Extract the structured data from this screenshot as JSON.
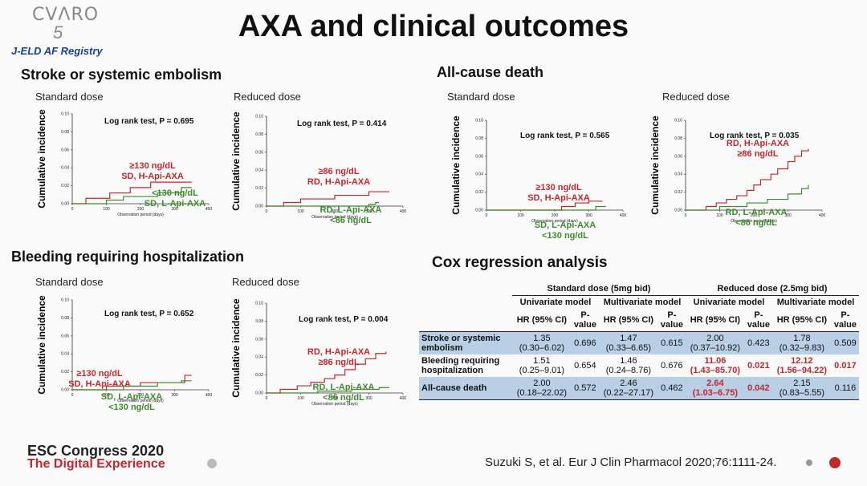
{
  "logo": {
    "text": "CVΛRO",
    "number": "5"
  },
  "registry": "J-ELD AF Registry",
  "title": "AXA and clinical outcomes",
  "sections": {
    "stroke": "Stroke or systemic embolism",
    "death": "All-cause death",
    "bleeding": "Bleeding requiring hospitalization",
    "cox": "Cox regression analysis"
  },
  "chart_data": [
    {
      "id": "stroke-sd",
      "type": "line",
      "subtitle": "Standard dose",
      "ylabel": "Cumulative incidence",
      "xlabel": "Observation period (days)",
      "ylim": [
        0,
        0.1
      ],
      "yticks": [
        "0.00",
        "0.02",
        "0.04",
        "0.06",
        "0.08",
        "0.10"
      ],
      "xlim": [
        0,
        400
      ],
      "xticks": [
        "0",
        "100",
        "200",
        "300",
        "400"
      ],
      "annotation": "Log rank test, P = 0.695",
      "series": [
        {
          "name": "SD, H-Api-AXA",
          "label_lines": [
            "≥130 ng/dL",
            "SD, H-Api-AXA"
          ],
          "color": "#c1272d",
          "x": [
            0,
            40,
            110,
            170,
            230,
            300,
            350
          ],
          "y": [
            0,
            0.006,
            0.012,
            0.018,
            0.024,
            0.024,
            0.024
          ]
        },
        {
          "name": "SD, L-Api-AXA",
          "label_lines": [
            "<130 ng/dL",
            "SD, L-Api-AXA"
          ],
          "color": "#3f8a2e",
          "x": [
            0,
            100,
            150,
            250,
            320,
            350
          ],
          "y": [
            0,
            0.004,
            0.008,
            0.012,
            0.018,
            0.018
          ]
        }
      ]
    },
    {
      "id": "stroke-rd",
      "type": "line",
      "subtitle": "Reduced dose",
      "ylabel": "Cumulative incidence",
      "xlabel": "Observation period (days)",
      "ylim": [
        0,
        0.1
      ],
      "yticks": [
        "0.00",
        "0.02",
        "0.04",
        "0.06",
        "0.08",
        "0.10"
      ],
      "xlim": [
        0,
        400
      ],
      "xticks": [
        "0",
        "100",
        "200",
        "300",
        "400"
      ],
      "annotation": "Log rank test, P = 0.414",
      "series": [
        {
          "name": "RD, H-Api-AXA",
          "label_lines": [
            "≥86 ng/dL",
            "RD, H-Api-AXA"
          ],
          "color": "#c1272d",
          "x": [
            0,
            50,
            100,
            200,
            300,
            360
          ],
          "y": [
            0,
            0.004,
            0.008,
            0.012,
            0.016,
            0.016
          ]
        },
        {
          "name": "RD, L-Api-AXA",
          "label_lines": [
            "RD, L-Api-AXA",
            "<86 ng/dL"
          ],
          "color": "#3f8a2e",
          "x": [
            0,
            300,
            320,
            330
          ],
          "y": [
            0,
            0.002,
            0.004,
            0.004
          ]
        }
      ]
    },
    {
      "id": "death-sd",
      "type": "line",
      "subtitle": "Standard dose",
      "ylabel": "Cumulative incidence",
      "xlabel": "Observation period (days)",
      "ylim": [
        0,
        0.1
      ],
      "yticks": [
        "0.00",
        "0.02",
        "0.04",
        "0.06",
        "0.08",
        "0.10"
      ],
      "xlim": [
        0,
        400
      ],
      "xticks": [
        "0",
        "100",
        "200",
        "300",
        "400"
      ],
      "annotation": "Log rank test, P = 0.565",
      "series": [
        {
          "name": "SD, H-Api-AXA",
          "label_lines": [
            "≥130 ng/dL",
            "SD, H-Api-AXA"
          ],
          "color": "#c1272d",
          "x": [
            0,
            220,
            260,
            300,
            340
          ],
          "y": [
            0,
            0.004,
            0.008,
            0.01,
            0.01
          ]
        },
        {
          "name": "SD, L-Api-AXA",
          "label_lines": [
            "SD, L-Api-AXA",
            "<130 ng/dL"
          ],
          "color": "#3f8a2e",
          "x": [
            0,
            320,
            350
          ],
          "y": [
            0,
            0.004,
            0.004
          ]
        }
      ]
    },
    {
      "id": "death-rd",
      "type": "line",
      "subtitle": "Reduced dose",
      "ylabel": "Cumulative incidence",
      "xlabel": "Observation period (days)",
      "ylim": [
        0,
        0.1
      ],
      "yticks": [
        "0.00",
        "0.02",
        "0.04",
        "0.06",
        "0.08",
        "0.10"
      ],
      "xlim": [
        0,
        400
      ],
      "xticks": [
        "0",
        "100",
        "200",
        "300",
        "400"
      ],
      "annotation": "Log rank test, P = 0.035",
      "series": [
        {
          "name": "RD, H-Api-AXA",
          "label_lines": [
            "RD, H-Api-AXA",
            "≥86 ng/dL"
          ],
          "color": "#c1272d",
          "x": [
            0,
            60,
            90,
            120,
            150,
            180,
            200,
            220,
            250,
            270,
            300,
            320,
            340,
            360
          ],
          "y": [
            0,
            0.004,
            0.008,
            0.012,
            0.016,
            0.022,
            0.028,
            0.034,
            0.04,
            0.046,
            0.054,
            0.06,
            0.066,
            0.068
          ]
        },
        {
          "name": "RD, L-Api-AXA",
          "label_lines": [
            "RD, L-Api-AXA",
            "<86 ng/dL"
          ],
          "color": "#3f8a2e",
          "x": [
            0,
            100,
            180,
            240,
            300,
            340,
            360
          ],
          "y": [
            0,
            0.004,
            0.008,
            0.012,
            0.018,
            0.024,
            0.028
          ]
        }
      ]
    },
    {
      "id": "bleed-sd",
      "type": "line",
      "subtitle": "Standard dose",
      "ylabel": "Cumulative incidence",
      "xlabel": "Observation period (days)",
      "ylim": [
        0,
        0.1
      ],
      "yticks": [
        "0.00",
        "0.02",
        "0.04",
        "0.06",
        "0.08",
        "0.10"
      ],
      "xlim": [
        0,
        400
      ],
      "xticks": [
        "0",
        "100",
        "200",
        "300",
        "400"
      ],
      "annotation": "Log rank test, P = 0.652",
      "series": [
        {
          "name": "SD, H-Api-AXA",
          "label_lines": [
            "≥130 ng/dL",
            "SD, H-Api-AXA"
          ],
          "color": "#c1272d",
          "x": [
            0,
            100,
            200,
            330,
            350
          ],
          "y": [
            0,
            0.004,
            0.008,
            0.016,
            0.016
          ]
        },
        {
          "name": "SD, L-Api-AXA",
          "label_lines": [
            "SD, L-Api-AXA",
            "<130 ng/dL"
          ],
          "color": "#3f8a2e",
          "x": [
            0,
            150,
            250,
            320,
            350
          ],
          "y": [
            0,
            0.004,
            0.008,
            0.01,
            0.01
          ]
        }
      ]
    },
    {
      "id": "bleed-rd",
      "type": "line",
      "subtitle": "Reduced dose",
      "ylabel": "Cumulative incidence",
      "xlabel": "Observation period (days)",
      "ylim": [
        0,
        0.1
      ],
      "yticks": [
        "0.00",
        "0.02",
        "0.04",
        "0.06",
        "0.08",
        "0.10"
      ],
      "xlim": [
        0,
        400
      ],
      "xticks": [
        "0",
        "100",
        "200",
        "300",
        "400"
      ],
      "annotation": "Log rank test, P = 0.004",
      "series": [
        {
          "name": "RD, H-Api-AXA",
          "label_lines": [
            "RD, H-Api-AXA",
            "≥86 ng/dL"
          ],
          "color": "#c1272d",
          "x": [
            0,
            40,
            90,
            130,
            170,
            200,
            230,
            260,
            290,
            320,
            350
          ],
          "y": [
            0,
            0.004,
            0.008,
            0.012,
            0.016,
            0.02,
            0.026,
            0.032,
            0.038,
            0.044,
            0.046
          ]
        },
        {
          "name": "RD, L-Api-AXA",
          "label_lines": [
            "RD, L-Api-AXA",
            "<86 ng/dL"
          ],
          "color": "#3f8a2e",
          "x": [
            0,
            150,
            250,
            330,
            360
          ],
          "y": [
            0,
            0.002,
            0.004,
            0.006,
            0.006
          ]
        }
      ]
    },
    {
      "id": "cox",
      "type": "table",
      "groups": [
        "Standard dose (5mg bid)",
        "Reduced dose (2.5mg bid)"
      ],
      "models": [
        "Univariate model",
        "Multivariate model",
        "Univariate model",
        "Multivariate model"
      ],
      "columns": [
        "HR (95% CI)",
        "P-value"
      ],
      "rows": [
        {
          "outcome": "Stroke or systemic embolism",
          "shade": true,
          "cells": [
            [
              "1.35",
              "(0.30–6.02)",
              "0.696"
            ],
            [
              "1.47",
              "(0.33–6.65)",
              "0.615"
            ],
            [
              "2.00",
              "(0.37–10.92)",
              "0.423"
            ],
            [
              "1.78",
              "(0.32–9.83)",
              "0.509"
            ]
          ],
          "red": [
            false,
            false,
            false,
            false
          ]
        },
        {
          "outcome": "Bleeding requiring hospitalization",
          "shade": false,
          "cells": [
            [
              "1.51",
              "(0.25–9.01)",
              "0.654"
            ],
            [
              "1.46",
              "(0.24–8.76)",
              "0.676"
            ],
            [
              "11.06",
              "(1.43–85.70)",
              "0.021"
            ],
            [
              "12.12",
              "(1.56–94.22)",
              "0.017"
            ]
          ],
          "red": [
            false,
            false,
            true,
            true
          ]
        },
        {
          "outcome": "All-cause death",
          "shade": true,
          "cells": [
            [
              "2.00",
              "(0.18–22.02)",
              "0.572"
            ],
            [
              "2.46",
              "(0.22–27.17)",
              "0.462"
            ],
            [
              "2.64",
              "(1.03–6.75)",
              "0.042"
            ],
            [
              "2.15",
              "(0.83–5.55)",
              "0.116"
            ]
          ],
          "red": [
            false,
            false,
            true,
            false
          ]
        }
      ]
    }
  ],
  "footer": {
    "congress": "ESC Congress 2020",
    "tagline": "The Digital Experience",
    "citation": "Suzuki S, et al. Eur J Clin Pharmacol 2020;76:1111-24."
  }
}
